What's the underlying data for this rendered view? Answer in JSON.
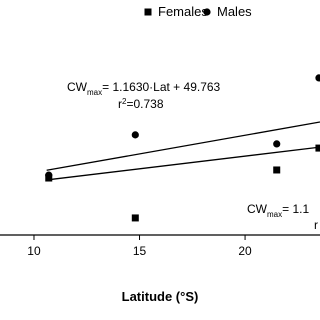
{
  "chart_data": {
    "type": "scatter",
    "x_label": "Latitude (°S)",
    "xlim": [
      8.39,
      23.55
    ],
    "xticks": [
      10,
      15,
      20
    ],
    "ylim": [
      42,
      115
    ],
    "series": [
      {
        "name": "Females",
        "marker": "square",
        "color": "#000000",
        "x": [
          10.7,
          14.8,
          21.5,
          23.5
        ],
        "values": [
          59.7,
          47.3,
          62.2,
          69.0
        ]
      },
      {
        "name": "Males",
        "marker": "circle",
        "color": "#000000",
        "x": [
          10.7,
          14.8,
          21.5,
          23.5
        ],
        "values": [
          60.6,
          73.1,
          70.3,
          90.8
        ]
      }
    ],
    "fits": [
      {
        "color": "#000000",
        "x": [
          10.6,
          23.55
        ],
        "values": [
          62.1,
          77.1
        ]
      },
      {
        "color": "#000000",
        "x": [
          10.6,
          23.55
        ],
        "values": [
          59.1,
          69.3
        ]
      }
    ],
    "annotations": [
      {
        "cw": "CW",
        "sub": "max",
        "eq": "= 1.1630·Lat + 49.763",
        "r": "r",
        "sup": "2",
        "r_val": "=0.738"
      },
      {
        "cw": "CW",
        "sub": "max",
        "eq": "= 1.1",
        "r": "r"
      }
    ]
  }
}
